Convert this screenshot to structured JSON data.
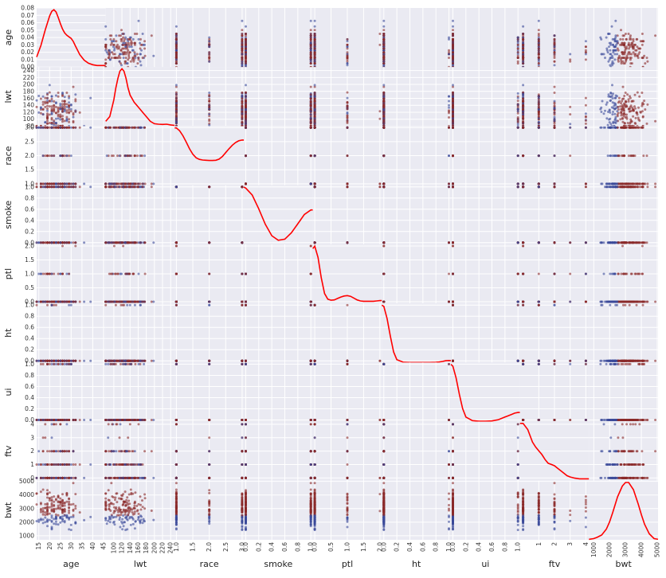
{
  "chart_data": {
    "type": "scatter-matrix",
    "title": "",
    "variables": [
      {
        "name": "age",
        "label": "age",
        "range": [
          14,
          46
        ],
        "ticks": [
          15,
          20,
          25,
          30,
          35,
          40,
          45
        ],
        "tick_labels": [
          "15",
          "20",
          "25",
          "30",
          "35",
          "40",
          "45"
        ],
        "y_ticks": [
          0.0,
          0.01,
          0.02,
          0.03,
          0.04,
          0.05,
          0.06,
          0.07,
          0.08
        ],
        "y_tick_labels": [
          "0.00",
          "0.01",
          "0.02",
          "0.03",
          "0.04",
          "0.05",
          "0.06",
          "0.07",
          "0.08"
        ],
        "y_range": [
          0,
          0.08
        ]
      },
      {
        "name": "lwt",
        "label": "lwt",
        "range": [
          80,
          250
        ],
        "ticks": [
          100,
          120,
          140,
          160,
          180,
          200,
          220,
          240
        ],
        "tick_labels": [
          "100",
          "120",
          "140",
          "160",
          "180",
          "200",
          "220",
          "240"
        ],
        "y_ticks": [
          80,
          100,
          120,
          140,
          160,
          180,
          200,
          220,
          240
        ],
        "y_tick_labels": [
          "80",
          "100",
          "120",
          "140",
          "160",
          "180",
          "200",
          "220",
          "240"
        ],
        "y_range": [
          80,
          250
        ]
      },
      {
        "name": "race",
        "label": "race",
        "range": [
          0.95,
          3.05
        ],
        "ticks": [
          1.0,
          1.5,
          2.0,
          2.5,
          3.0
        ],
        "tick_labels": [
          "1.0",
          "1.5",
          "2.0",
          "2.5",
          "3.0"
        ],
        "y_ticks": [
          1.0,
          1.5,
          2.0,
          2.5,
          3.0
        ],
        "y_tick_labels": [
          "1.0",
          "1.5",
          "2.0",
          "2.5",
          "3.0"
        ],
        "y_range": [
          0.95,
          3.05
        ]
      },
      {
        "name": "smoke",
        "label": "smoke",
        "range": [
          -0.03,
          1.03
        ],
        "ticks": [
          0.0,
          0.2,
          0.4,
          0.6,
          0.8,
          1.0
        ],
        "tick_labels": [
          "0.0",
          "0.2",
          "0.4",
          "0.6",
          "0.8",
          "1.0"
        ],
        "y_ticks": [
          0.0,
          0.2,
          0.4,
          0.6,
          0.8,
          1.0
        ],
        "y_tick_labels": [
          "0.0",
          "0.2",
          "0.4",
          "0.6",
          "0.8",
          "1.0"
        ],
        "y_range": [
          -0.03,
          1.03
        ]
      },
      {
        "name": "ptl",
        "label": "ptl",
        "range": [
          -0.06,
          2.06
        ],
        "ticks": [
          0.0,
          0.5,
          1.0,
          1.5,
          2.0
        ],
        "tick_labels": [
          "0.0",
          "0.5",
          "1.0",
          "1.5",
          "2.0"
        ],
        "y_ticks": [
          0.0,
          0.5,
          1.0,
          1.5,
          2.0
        ],
        "y_tick_labels": [
          "0.0",
          "0.5",
          "1.0",
          "1.5",
          "2.0"
        ],
        "y_range": [
          -0.06,
          2.06
        ]
      },
      {
        "name": "ht",
        "label": "ht",
        "range": [
          -0.03,
          1.03
        ],
        "ticks": [
          0.0,
          0.2,
          0.4,
          0.6,
          0.8,
          1.0
        ],
        "tick_labels": [
          "0.0",
          "0.2",
          "0.4",
          "0.6",
          "0.8",
          "1.0"
        ],
        "y_ticks": [
          0.0,
          0.2,
          0.4,
          0.6,
          0.8,
          1.0
        ],
        "y_tick_labels": [
          "0.0",
          "0.2",
          "0.4",
          "0.6",
          "0.8",
          "1.0"
        ],
        "y_range": [
          -0.03,
          1.03
        ]
      },
      {
        "name": "ui",
        "label": "ui",
        "range": [
          -0.03,
          1.03
        ],
        "ticks": [
          0.0,
          0.2,
          0.4,
          0.6,
          0.8,
          1.0
        ],
        "tick_labels": [
          "0.0",
          "0.2",
          "0.4",
          "0.6",
          "0.8",
          "1.0"
        ],
        "y_ticks": [
          0.0,
          0.2,
          0.4,
          0.6,
          0.8,
          1.0
        ],
        "y_tick_labels": [
          "0.0",
          "0.2",
          "0.4",
          "0.6",
          "0.8",
          "1.0"
        ],
        "y_range": [
          -0.03,
          1.03
        ]
      },
      {
        "name": "ftv",
        "label": "ftv",
        "range": [
          -0.2,
          4.2
        ],
        "ticks": [
          1,
          2,
          3,
          4
        ],
        "tick_labels": [
          "1",
          "2",
          "3",
          "4"
        ],
        "y_ticks": [
          0,
          1,
          2,
          3,
          4
        ],
        "y_tick_labels": [
          "0",
          "1",
          "2",
          "3",
          "4"
        ],
        "y_range": [
          -0.2,
          4.2
        ]
      },
      {
        "name": "bwt",
        "label": "bwt",
        "range": [
          700,
          5050
        ],
        "ticks": [
          1000,
          2000,
          3000,
          4000,
          5000
        ],
        "tick_labels": [
          "1000",
          "2000",
          "3000",
          "4000",
          "5000"
        ],
        "y_ticks": [
          1000,
          2000,
          3000,
          4000,
          5000
        ],
        "y_tick_labels": [
          "1000",
          "2000",
          "3000",
          "4000",
          "5000"
        ],
        "y_range": [
          700,
          5050
        ]
      }
    ],
    "diagonal": "kde",
    "kde_color": "#ff0000",
    "point_colors": {
      "low_bwt": "#3b4a9a",
      "normal_bwt": "#8b2a2a"
    },
    "kde_curves": {
      "age": {
        "x": [
          14,
          16,
          18,
          20,
          21,
          22,
          23,
          24,
          25,
          26,
          27,
          28,
          29,
          30,
          31,
          32,
          34,
          36,
          38,
          40,
          42,
          44,
          46
        ],
        "y": [
          0.013,
          0.028,
          0.048,
          0.066,
          0.072,
          0.074,
          0.071,
          0.064,
          0.056,
          0.049,
          0.044,
          0.041,
          0.039,
          0.037,
          0.033,
          0.027,
          0.016,
          0.009,
          0.005,
          0.003,
          0.002,
          0.002,
          0.002
        ]
      },
      "lwt": {
        "x": [
          80,
          90,
          100,
          105,
          110,
          115,
          120,
          125,
          130,
          135,
          140,
          150,
          160,
          170,
          180,
          190,
          200,
          210,
          220,
          230,
          240,
          250
        ],
        "y": [
          0.002,
          0.004,
          0.011,
          0.016,
          0.02,
          0.023,
          0.024,
          0.023,
          0.02,
          0.016,
          0.013,
          0.01,
          0.008,
          0.006,
          0.004,
          0.002,
          0.001,
          0.0008,
          0.0007,
          0.0008,
          0.0005,
          0.0003
        ]
      },
      "race": {
        "x": [
          0.95,
          1.0,
          1.1,
          1.2,
          1.3,
          1.4,
          1.5,
          1.6,
          1.7,
          1.8,
          1.9,
          2.0,
          2.1,
          2.2,
          2.3,
          2.4,
          2.5,
          2.6,
          2.7,
          2.8,
          2.9,
          3.0,
          3.05
        ],
        "y": [
          2.55,
          2.55,
          2.42,
          2.2,
          1.92,
          1.62,
          1.38,
          1.22,
          1.15,
          1.12,
          1.11,
          1.1,
          1.1,
          1.11,
          1.16,
          1.28,
          1.45,
          1.62,
          1.78,
          1.9,
          1.98,
          2.01,
          2.01
        ]
      },
      "smoke": {
        "x": [
          -0.03,
          0.0,
          0.1,
          0.2,
          0.3,
          0.4,
          0.5,
          0.6,
          0.7,
          0.8,
          0.9,
          1.0,
          1.03
        ],
        "y": [
          1.0,
          0.98,
          0.86,
          0.62,
          0.35,
          0.15,
          0.07,
          0.09,
          0.2,
          0.36,
          0.52,
          0.6,
          0.6
        ]
      },
      "ptl": {
        "x": [
          -0.06,
          0.0,
          0.1,
          0.2,
          0.3,
          0.4,
          0.5,
          0.6,
          0.7,
          0.8,
          0.9,
          1.0,
          1.1,
          1.2,
          1.3,
          1.4,
          1.5,
          1.6,
          1.7,
          1.8,
          1.9,
          2.0,
          2.06
        ],
        "y": [
          1.55,
          1.62,
          1.3,
          0.72,
          0.28,
          0.12,
          0.09,
          0.1,
          0.14,
          0.18,
          0.21,
          0.22,
          0.2,
          0.15,
          0.1,
          0.07,
          0.06,
          0.06,
          0.06,
          0.06,
          0.07,
          0.08,
          0.08
        ]
      },
      "ht": {
        "x": [
          -0.03,
          0.0,
          0.05,
          0.1,
          0.15,
          0.2,
          0.3,
          0.4,
          0.5,
          0.6,
          0.7,
          0.8,
          0.85,
          0.9,
          0.95,
          1.0,
          1.03
        ],
        "y": [
          0.98,
          0.96,
          0.75,
          0.45,
          0.18,
          0.05,
          0.005,
          0.0,
          0.0,
          0.0,
          0.0,
          0.003,
          0.008,
          0.018,
          0.03,
          0.035,
          0.03
        ]
      },
      "ui": {
        "x": [
          -0.03,
          0.0,
          0.05,
          0.1,
          0.15,
          0.2,
          0.3,
          0.4,
          0.5,
          0.6,
          0.7,
          0.8,
          0.85,
          0.9,
          0.95,
          1.0,
          1.03
        ],
        "y": [
          0.88,
          0.85,
          0.67,
          0.42,
          0.2,
          0.07,
          0.015,
          0.006,
          0.006,
          0.01,
          0.03,
          0.07,
          0.09,
          0.11,
          0.13,
          0.14,
          0.14
        ]
      },
      "ftv": {
        "x": [
          -0.2,
          0.0,
          0.3,
          0.6,
          0.8,
          1.0,
          1.2,
          1.4,
          1.6,
          1.8,
          2.0,
          2.2,
          2.5,
          2.8,
          3.0,
          3.3,
          3.6,
          4.0,
          4.2
        ],
        "y": [
          0.46,
          0.46,
          0.41,
          0.31,
          0.27,
          0.24,
          0.21,
          0.17,
          0.14,
          0.13,
          0.12,
          0.1,
          0.07,
          0.04,
          0.03,
          0.02,
          0.015,
          0.015,
          0.015
        ]
      },
      "bwt": {
        "x": [
          700,
          1000,
          1200,
          1500,
          1800,
          2000,
          2200,
          2500,
          2800,
          3000,
          3200,
          3500,
          3800,
          4000,
          4200,
          4500,
          4800,
          5050
        ],
        "y": [
          4e-06,
          1e-05,
          2e-05,
          4e-05,
          9e-05,
          0.00015,
          0.00023,
          0.00036,
          0.00045,
          0.00048,
          0.00048,
          0.00042,
          0.0003,
          0.00021,
          0.00013,
          5e-05,
          1e-05,
          4e-06
        ]
      }
    },
    "points": {
      "count": 189,
      "seed": 20240607
    }
  }
}
